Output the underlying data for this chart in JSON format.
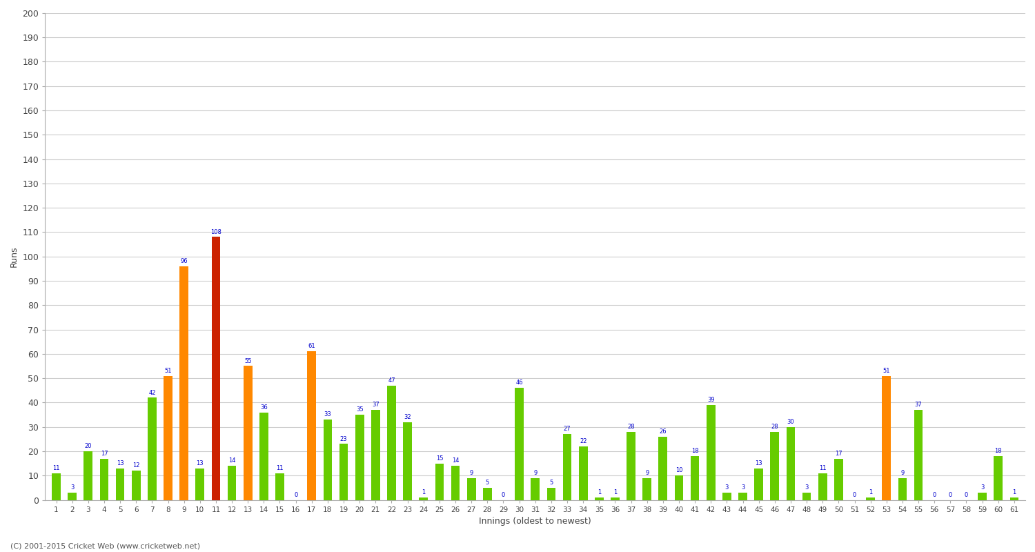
{
  "xlabel": "Innings (oldest to newest)",
  "ylabel": "Runs",
  "ylim": [
    0,
    200
  ],
  "yticks": [
    0,
    10,
    20,
    30,
    40,
    50,
    60,
    70,
    80,
    90,
    100,
    110,
    120,
    130,
    140,
    150,
    160,
    170,
    180,
    190,
    200
  ],
  "innings": [
    1,
    2,
    3,
    4,
    5,
    6,
    7,
    8,
    9,
    10,
    11,
    12,
    13,
    14,
    15,
    16,
    17,
    18,
    19,
    20,
    21,
    22,
    23,
    24,
    25,
    26,
    27,
    28,
    29,
    30,
    31,
    32,
    33,
    34,
    35,
    36,
    37,
    38,
    39,
    40,
    41,
    42,
    43,
    44,
    45,
    46,
    47,
    48,
    49,
    50,
    51,
    52,
    53,
    54,
    55,
    56,
    57,
    58,
    59,
    60,
    61
  ],
  "values": [
    11,
    3,
    20,
    17,
    13,
    12,
    42,
    51,
    96,
    13,
    108,
    14,
    55,
    36,
    11,
    0,
    61,
    33,
    23,
    35,
    37,
    47,
    32,
    1,
    15,
    14,
    9,
    5,
    0,
    46,
    9,
    5,
    27,
    22,
    1,
    1,
    28,
    9,
    26,
    10,
    18,
    39,
    3,
    3,
    13,
    28,
    30,
    3,
    11,
    17,
    0,
    1,
    51,
    9,
    37,
    0,
    0,
    0,
    3,
    18,
    1
  ],
  "color_green": "#66cc00",
  "color_orange": "#ff8800",
  "color_red": "#cc2200",
  "color_label": "#0000cc",
  "background_color": "#ffffff",
  "grid_color": "#cccccc",
  "footer": "(C) 2001-2015 Cricket Web (www.cricketweb.net)"
}
